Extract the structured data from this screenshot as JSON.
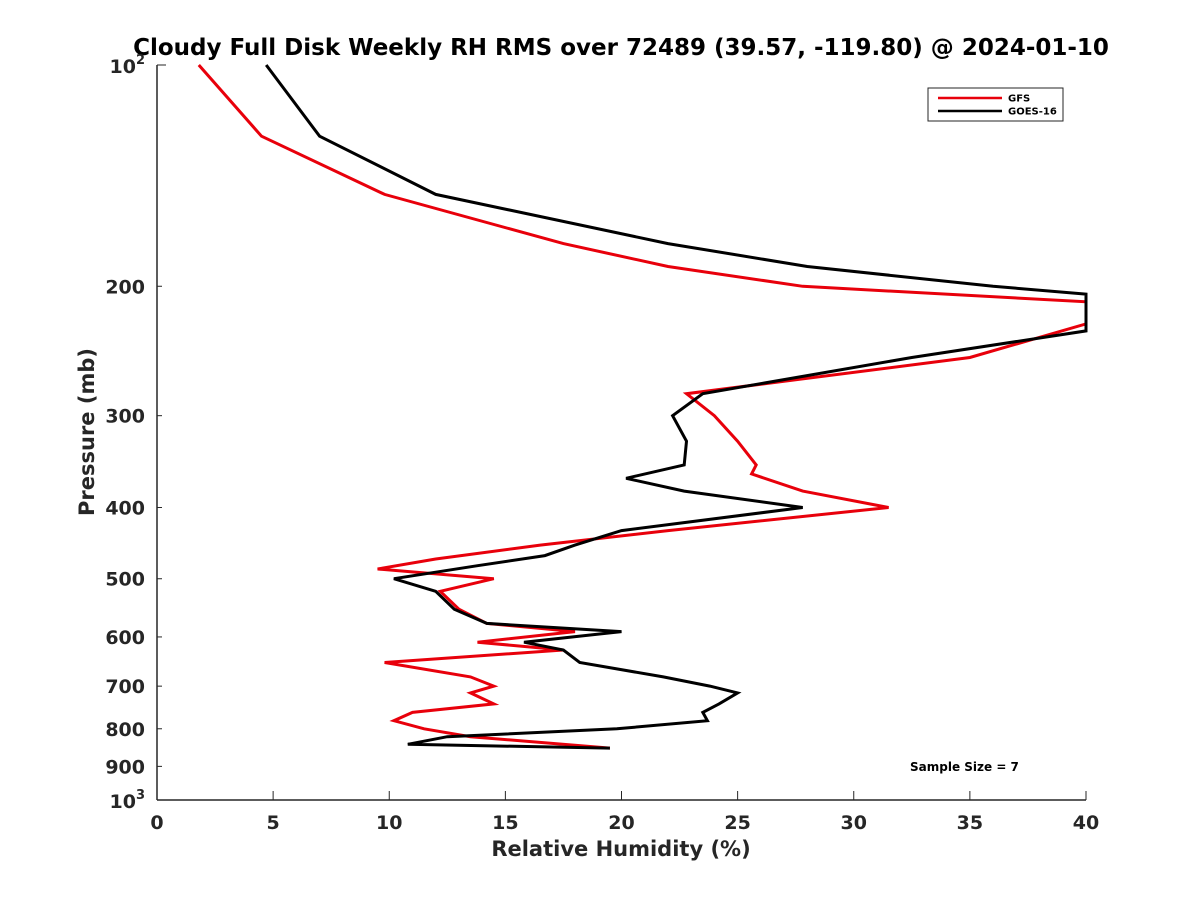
{
  "chart_data": {
    "type": "line",
    "title": "Cloudy Full Disk Weekly RH RMS over 72489 (39.57, -119.80) @ 2024-01-10",
    "xlabel": "Relative Humidity (%)",
    "ylabel": "Pressure (mb)",
    "xlim": [
      0,
      40
    ],
    "ylim": [
      100,
      1000
    ],
    "y_scale": "log",
    "y_reversed": true,
    "grid": false,
    "legend_position": "top-right",
    "x_ticks": [
      "0",
      "5",
      "10",
      "15",
      "20",
      "25",
      "30",
      "35",
      "40"
    ],
    "y_ticks": [
      {
        "value": 100,
        "base": "10",
        "exp": "2"
      },
      {
        "value": 200,
        "label": "200"
      },
      {
        "value": 300,
        "label": "300"
      },
      {
        "value": 400,
        "label": "400"
      },
      {
        "value": 500,
        "label": "500"
      },
      {
        "value": 600,
        "label": "600"
      },
      {
        "value": 700,
        "label": "700"
      },
      {
        "value": 800,
        "label": "800"
      },
      {
        "value": 900,
        "label": "900"
      },
      {
        "value": 1000,
        "base": "10",
        "exp": "3"
      }
    ],
    "annotation": "Sample Size = 7",
    "series": [
      {
        "name": "GFS",
        "color": "#e8000b",
        "points": [
          [
            1.8,
            100
          ],
          [
            4.5,
            125
          ],
          [
            9.8,
            150
          ],
          [
            17.5,
            175
          ],
          [
            22.0,
            188
          ],
          [
            27.8,
            200
          ],
          [
            40.0,
            210
          ],
          [
            40.0,
            225
          ],
          [
            35.0,
            250
          ],
          [
            22.8,
            280
          ],
          [
            24.0,
            300
          ],
          [
            25.0,
            325
          ],
          [
            25.8,
            350
          ],
          [
            25.6,
            360
          ],
          [
            27.8,
            380
          ],
          [
            31.5,
            400
          ],
          [
            22.0,
            430
          ],
          [
            16.5,
            450
          ],
          [
            12.0,
            470
          ],
          [
            9.5,
            485
          ],
          [
            14.5,
            500
          ],
          [
            12.2,
            520
          ],
          [
            13.0,
            550
          ],
          [
            14.2,
            575
          ],
          [
            18.0,
            590
          ],
          [
            13.8,
            610
          ],
          [
            17.5,
            625
          ],
          [
            9.8,
            650
          ],
          [
            13.5,
            680
          ],
          [
            14.5,
            700
          ],
          [
            13.5,
            715
          ],
          [
            14.5,
            740
          ],
          [
            11.0,
            760
          ],
          [
            10.2,
            780
          ],
          [
            11.5,
            800
          ],
          [
            13.5,
            820
          ],
          [
            19.5,
            850
          ]
        ]
      },
      {
        "name": "GOES-16",
        "color": "#000000",
        "points": [
          [
            4.7,
            100
          ],
          [
            7.0,
            125
          ],
          [
            12.0,
            150
          ],
          [
            22.0,
            175
          ],
          [
            28.0,
            188
          ],
          [
            36.0,
            200
          ],
          [
            40.0,
            205
          ],
          [
            40.0,
            230
          ],
          [
            32.5,
            250
          ],
          [
            23.5,
            280
          ],
          [
            22.2,
            300
          ],
          [
            22.8,
            325
          ],
          [
            22.7,
            350
          ],
          [
            20.2,
            365
          ],
          [
            22.7,
            380
          ],
          [
            27.8,
            400
          ],
          [
            20.0,
            430
          ],
          [
            18.0,
            450
          ],
          [
            16.7,
            465
          ],
          [
            13.8,
            480
          ],
          [
            10.2,
            500
          ],
          [
            12.0,
            520
          ],
          [
            12.8,
            550
          ],
          [
            14.2,
            575
          ],
          [
            20.0,
            590
          ],
          [
            15.8,
            610
          ],
          [
            17.5,
            625
          ],
          [
            18.2,
            650
          ],
          [
            21.8,
            680
          ],
          [
            23.8,
            700
          ],
          [
            25.0,
            715
          ],
          [
            24.2,
            740
          ],
          [
            23.5,
            760
          ],
          [
            23.7,
            780
          ],
          [
            19.8,
            800
          ],
          [
            12.5,
            820
          ],
          [
            10.8,
            840
          ],
          [
            19.5,
            850
          ]
        ]
      }
    ]
  }
}
